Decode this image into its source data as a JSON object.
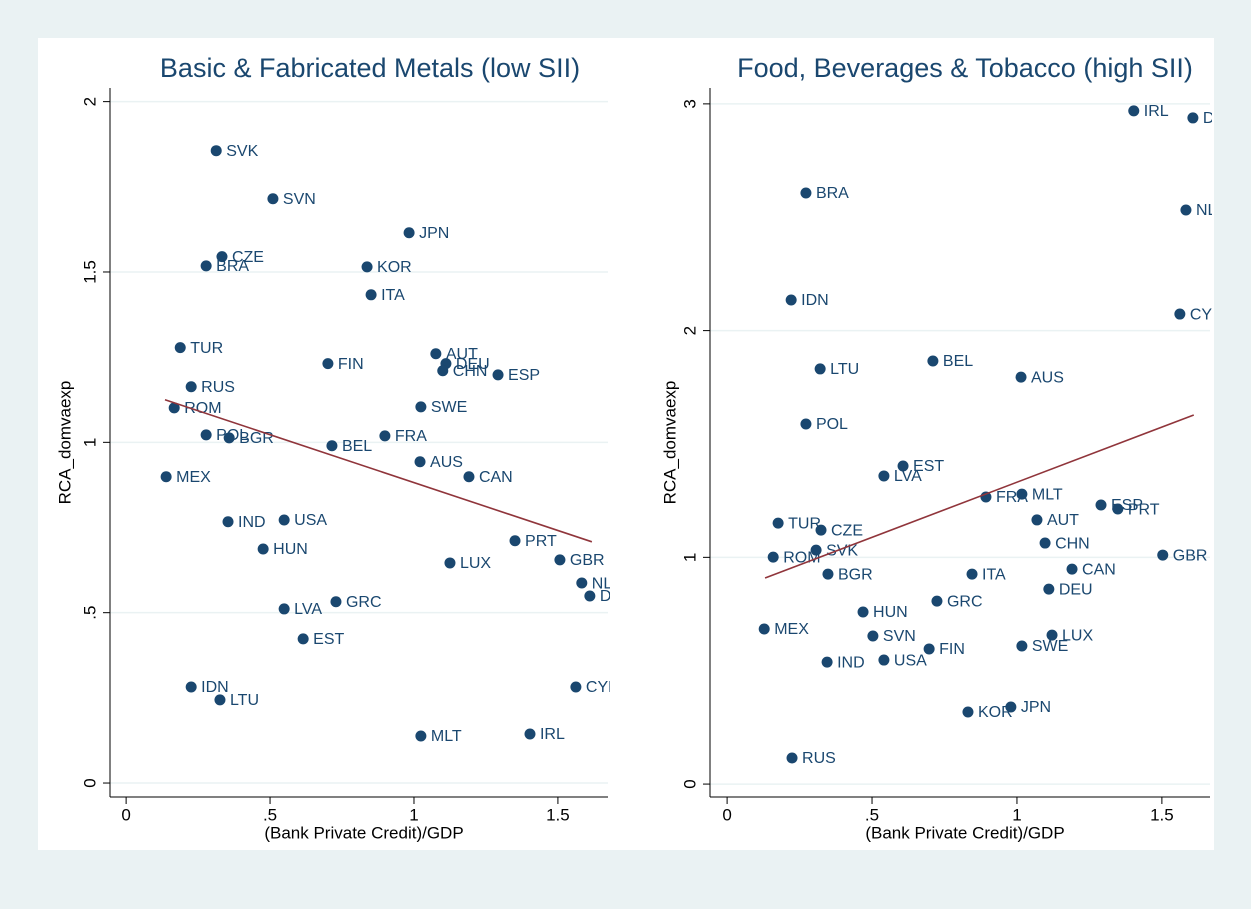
{
  "chart_data": [
    {
      "type": "scatter",
      "title": "Basic & Fabricated Metals (low SII)",
      "x_label": "(Bank Private Credit)/GDP",
      "y_label": "RCA_domvaexp",
      "xlim": [
        -0.056,
        1.674
      ],
      "ylim": [
        -0.041,
        2.04
      ],
      "xticks": [
        0,
        {
          "value": 0.5,
          "label": ".5"
        },
        1,
        1.5
      ],
      "yticks": [
        0,
        {
          "value": 0.5,
          "label": ".5"
        },
        1,
        1.5,
        2
      ],
      "grid": true,
      "color": "#1a476f",
      "points": {
        "labels": [
          "SVK",
          "SVN",
          "JPN",
          "CZE",
          "BRA",
          "KOR",
          "ITA",
          "TUR",
          "FIN",
          "AUT",
          "DEU",
          "CHN",
          "ESP",
          "RUS",
          "ROM",
          "SWE",
          "POL",
          "BGR",
          "FRA",
          "BEL",
          "AUS",
          "MEX",
          "CAN",
          "IND",
          "USA",
          "HUN",
          "PRT",
          "GBR",
          "LUX",
          "NLD",
          "DNK",
          "LVA",
          "GRC",
          "EST",
          "IDN",
          "LTU",
          "CYP",
          "MLT",
          "IRL"
        ],
        "x": [
          0.313,
          0.51,
          0.983,
          0.333,
          0.278,
          0.837,
          0.851,
          0.188,
          0.701,
          1.076,
          1.111,
          1.1,
          1.292,
          0.226,
          0.167,
          1.024,
          0.278,
          0.358,
          0.899,
          0.715,
          1.021,
          0.139,
          1.191,
          0.354,
          0.549,
          0.476,
          1.351,
          1.507,
          1.125,
          1.583,
          1.611,
          0.549,
          0.729,
          0.615,
          0.226,
          0.326,
          1.5625,
          1.024,
          1.403
        ],
        "y": [
          1.856,
          1.715,
          1.615,
          1.545,
          1.518,
          1.515,
          1.433,
          1.278,
          1.231,
          1.26,
          1.231,
          1.21,
          1.198,
          1.163,
          1.101,
          1.104,
          1.022,
          1.013,
          1.019,
          0.99,
          0.943,
          0.899,
          0.899,
          0.767,
          0.772,
          0.687,
          0.711,
          0.655,
          0.646,
          0.587,
          0.549,
          0.511,
          0.532,
          0.423,
          0.282,
          0.244,
          0.282,
          0.138,
          0.144
        ]
      },
      "fit_line": {
        "color": "#90353b",
        "x": [
          0.135,
          1.618
        ],
        "y": [
          1.125,
          0.708
        ]
      }
    },
    {
      "type": "scatter",
      "title": "Food, Beverages & Tobacco (high SII)",
      "x_label": "(Bank Private Credit)/GDP",
      "y_label": "RCA_domvaexp",
      "xlim": [
        -0.059,
        1.666
      ],
      "ylim": [
        -0.057,
        3.07
      ],
      "xticks": [
        0,
        {
          "value": 0.5,
          "label": ".5"
        },
        1,
        1.5
      ],
      "yticks": [
        0,
        1,
        2,
        3
      ],
      "grid": true,
      "color": "#1a476f",
      "points": {
        "labels": [
          "IRL",
          "DNK",
          "BRA",
          "NLD",
          "IDN",
          "CYP",
          "BEL",
          "LTU",
          "AUS",
          "POL",
          "EST",
          "LVA",
          "MLT",
          "FRA",
          "ESP",
          "PRT",
          "AUT",
          "TUR",
          "CZE",
          "CHN",
          "SVK",
          "ROM",
          "GBR",
          "BGR",
          "ITA",
          "CAN",
          "DEU",
          "GRC",
          "HUN",
          "MEX",
          "LUX",
          "SVN",
          "SWE",
          "FIN",
          "IND",
          "USA",
          "KOR",
          "JPN",
          "RUS"
        ],
        "x": [
          1.403,
          1.607,
          0.272,
          1.583,
          0.221,
          1.562,
          0.71,
          0.321,
          1.014,
          0.272,
          0.607,
          0.541,
          1.017,
          0.893,
          1.29,
          1.348,
          1.069,
          0.176,
          0.324,
          1.097,
          0.307,
          0.159,
          1.503,
          0.348,
          0.845,
          1.19,
          1.11,
          0.724,
          0.469,
          0.128,
          1.121,
          0.503,
          1.017,
          0.697,
          0.345,
          0.541,
          0.831,
          0.979,
          0.224
        ],
        "y": [
          2.969,
          2.938,
          2.607,
          2.532,
          2.135,
          2.073,
          1.866,
          1.831,
          1.795,
          1.588,
          1.403,
          1.359,
          1.279,
          1.266,
          1.231,
          1.213,
          1.165,
          1.151,
          1.12,
          1.063,
          1.032,
          1.001,
          1.01,
          0.926,
          0.926,
          0.948,
          0.86,
          0.807,
          0.759,
          0.684,
          0.657,
          0.653,
          0.609,
          0.596,
          0.538,
          0.547,
          0.318,
          0.34,
          0.115
        ]
      },
      "fit_line": {
        "color": "#90353b",
        "x": [
          0.131,
          1.61
        ],
        "y": [
          0.909,
          1.628
        ]
      }
    }
  ]
}
